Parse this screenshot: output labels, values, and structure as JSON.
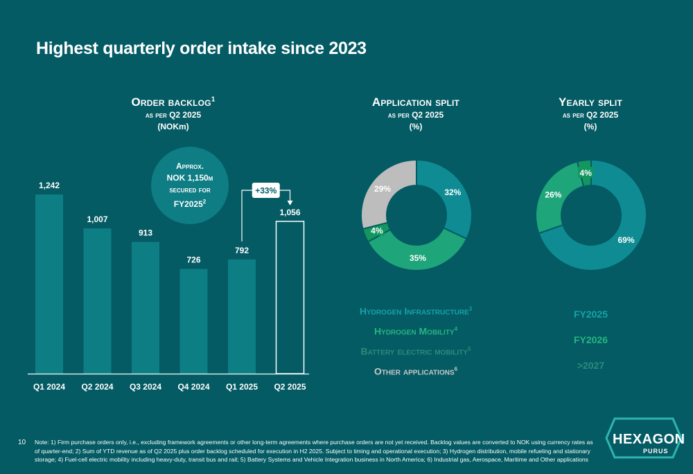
{
  "page": {
    "title": "Highest quarterly order intake since 2023",
    "page_number": "10",
    "note": "Note: 1) Firm purchase orders only, i.e., excluding framework agreements or other long-term agreements where purchase orders are not yet received. Backlog values are converted to NOK using currency rates as of quarter-end; 2) Sum of YTD revenue as of Q2 2025 plus order backlog scheduled for execution in H2 2025. Subject to timing and operational execution; 3) Hydrogen distribution, mobile refueling and stationary storage; 4) Fuel-cell electric mobility including heavy-duty, transit bus and rail; 5) Battery Systems and Vehicle Integration business in North America; 6) Industrial gas, Aerospace, Maritime and Other applications",
    "logo_text": "HEXAGON",
    "logo_sub": "PURUS"
  },
  "backlog": {
    "heading": "Order backlog",
    "heading_sup": "1",
    "sub": "as per Q2 2025",
    "unit": "(NOKm)",
    "approx_line1": "Approx.",
    "approx_line2": "NOK 1,150m",
    "approx_line3": "secured for",
    "approx_line4": "FY2025",
    "approx_sup": "2",
    "growth_label": "+33%"
  },
  "application": {
    "heading": "Application split",
    "sub": "as per Q2 2025",
    "unit": "(%)"
  },
  "yearly": {
    "heading": "Yearly split",
    "sub": "as per Q2 2025",
    "unit": "(%)"
  },
  "colors": {
    "background": "#045B64",
    "bar": "#0E7E85",
    "teal": "#0F8C93",
    "green": "#1FA57A",
    "gray": "#BDBDBD",
    "legend_teal": "#17A2A8",
    "legend_green": "#27B57E",
    "legend_gray": "#7FA9AC"
  },
  "chart_data": [
    {
      "type": "bar",
      "title": "Order backlog",
      "categories": [
        "Q1 2024",
        "Q2 2024",
        "Q3 2024",
        "Q4 2024",
        "Q1 2025",
        "Q2 2025"
      ],
      "values": [
        1242,
        1007,
        913,
        726,
        792,
        1056
      ],
      "value_labels": [
        "1,242",
        "1,007",
        "913",
        "726",
        "792",
        "1,056"
      ],
      "unit": "NOKm",
      "ylim": [
        0,
        1600
      ]
    },
    {
      "type": "pie",
      "title": "Application split",
      "labels": [
        "Hydrogen Infrastructure",
        "Hydrogen Mobility",
        "Battery electric mobility",
        "Other applications"
      ],
      "label_sups": [
        "3",
        "4",
        "5",
        "6"
      ],
      "values": [
        32,
        35,
        4,
        29
      ],
      "value_labels": [
        "32%",
        "35%",
        "4%",
        "29%"
      ],
      "colors": [
        "#0F8C93",
        "#1FA57A",
        "#13975F",
        "#BDBDBD"
      ],
      "legend_colors": [
        "#17A2A8",
        "#27B57E",
        "#2A8C7A",
        "#C8C8C8"
      ]
    },
    {
      "type": "pie",
      "title": "Yearly split",
      "labels": [
        "FY2025",
        "FY2026",
        ">2027"
      ],
      "values": [
        69,
        26,
        4
      ],
      "value_labels": [
        "69%",
        "26%",
        "4%"
      ],
      "colors": [
        "#0F8C93",
        "#1FA57A",
        "#13975F"
      ],
      "legend_colors": [
        "#17A2A8",
        "#27B57E",
        "#2A8C7A"
      ]
    }
  ]
}
